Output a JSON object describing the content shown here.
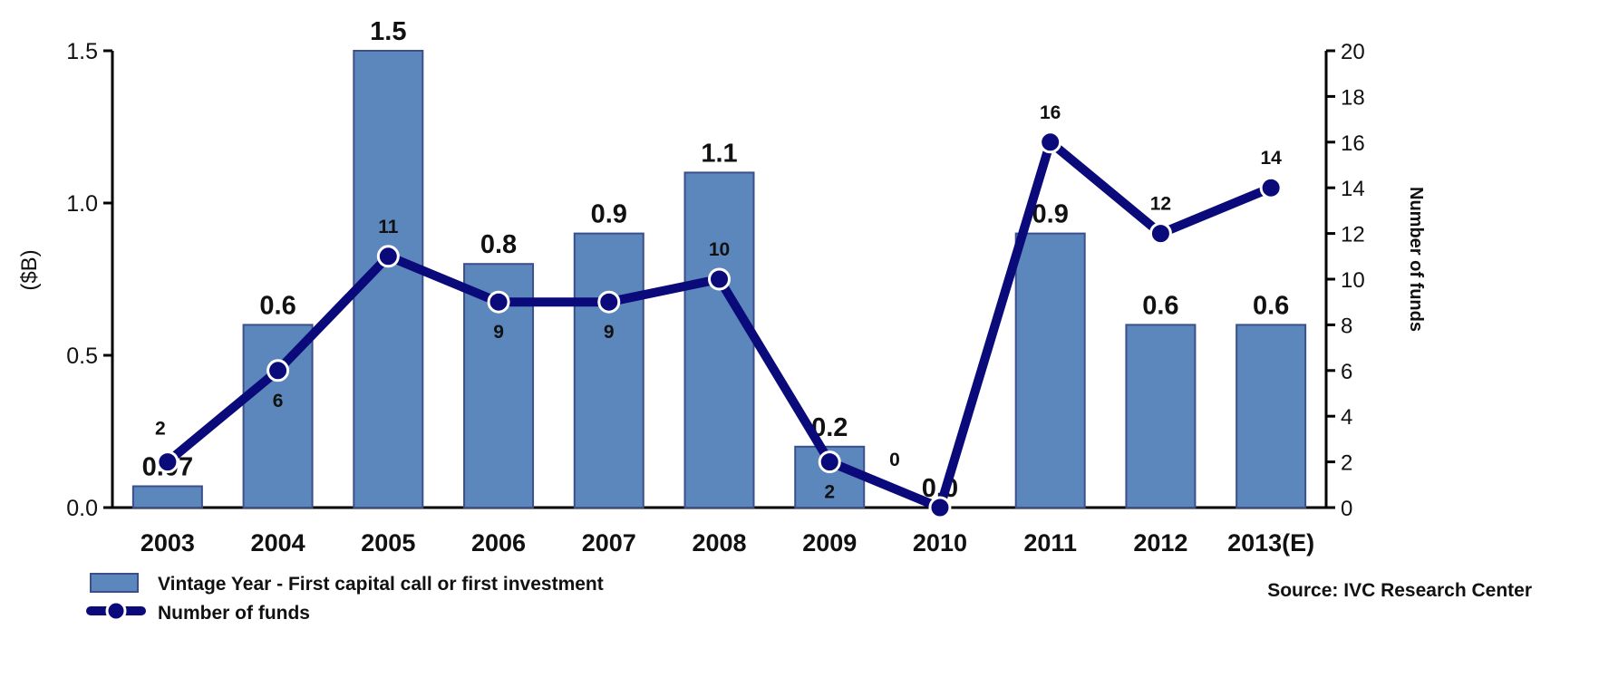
{
  "chart_data": {
    "type": "bar",
    "categories": [
      "2003",
      "2004",
      "2005",
      "2006",
      "2007",
      "2008",
      "2009",
      "2010",
      "2011",
      "2012",
      "2013(E)"
    ],
    "series": [
      {
        "name": "Vintage Year - First capital call or first investment",
        "type": "bar",
        "axis": "left",
        "values": [
          0.07,
          0.6,
          1.5,
          0.8,
          0.9,
          1.1,
          0.2,
          0.0,
          0.9,
          0.6,
          0.6
        ],
        "labels": [
          "0.07",
          "0.6",
          "1.5",
          "0.8",
          "0.9",
          "1.1",
          "0.2",
          "0.0",
          "0.9",
          "0.6",
          "0.6"
        ],
        "color": "#5b87bd"
      },
      {
        "name": "Number of funds",
        "type": "line",
        "axis": "right",
        "values": [
          2,
          6,
          11,
          9,
          9,
          10,
          2,
          0,
          16,
          12,
          14
        ],
        "labels": [
          "2",
          "6",
          "11",
          "9",
          "9",
          "10",
          "2",
          "0",
          "16",
          "12",
          "14"
        ],
        "label_pos": [
          "above",
          "below",
          "above",
          "below",
          "below",
          "above",
          "below",
          "above",
          "above",
          "above",
          "above"
        ],
        "color": "#0a0a7a"
      }
    ],
    "ylabel": "($B)",
    "y2label": "Number of funds",
    "ylim": [
      0,
      1.5
    ],
    "yticks": [
      "0.0",
      "0.5",
      "1.0",
      "1.5"
    ],
    "y2lim": [
      0,
      20
    ],
    "y2ticks": [
      "0",
      "2",
      "4",
      "6",
      "8",
      "10",
      "12",
      "14",
      "16",
      "18",
      "20"
    ],
    "grid": false,
    "legend_position": "bottom-left",
    "source": "Source: IVC Research Center"
  }
}
